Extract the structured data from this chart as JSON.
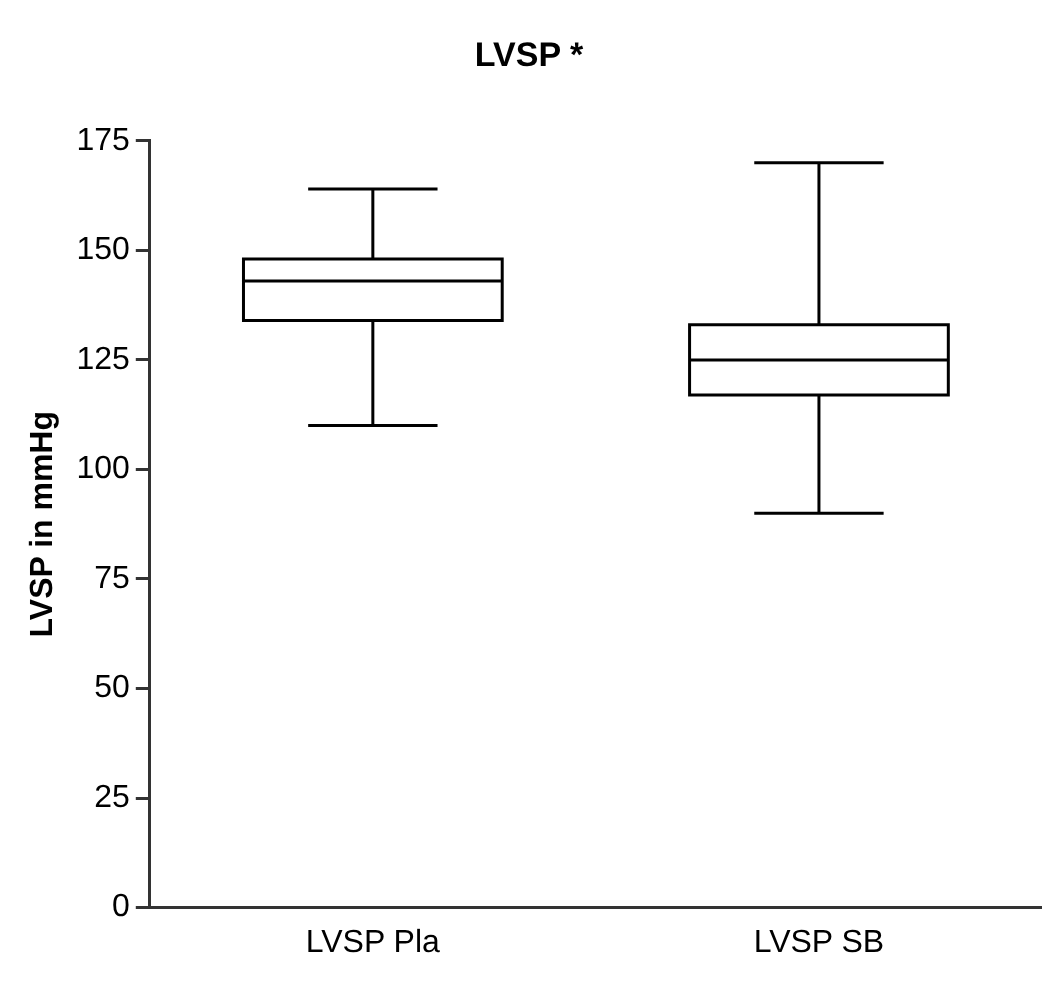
{
  "chart_data": {
    "type": "box",
    "title": "LVSP *",
    "ylabel": "LVSP in mmHg",
    "categories": [
      "LVSP Pla",
      "LVSP SB"
    ],
    "boxes": [
      {
        "low": 110,
        "q1": 134,
        "median": 143,
        "q3": 148,
        "high": 164
      },
      {
        "low": 90,
        "q1": 117,
        "median": 125,
        "q3": 133,
        "high": 170
      }
    ],
    "color": "#000000",
    "ylim": [
      0,
      175
    ],
    "yticks": [
      0,
      25,
      50,
      75,
      100,
      125,
      150,
      175
    ],
    "grid": false,
    "legend": false
  }
}
